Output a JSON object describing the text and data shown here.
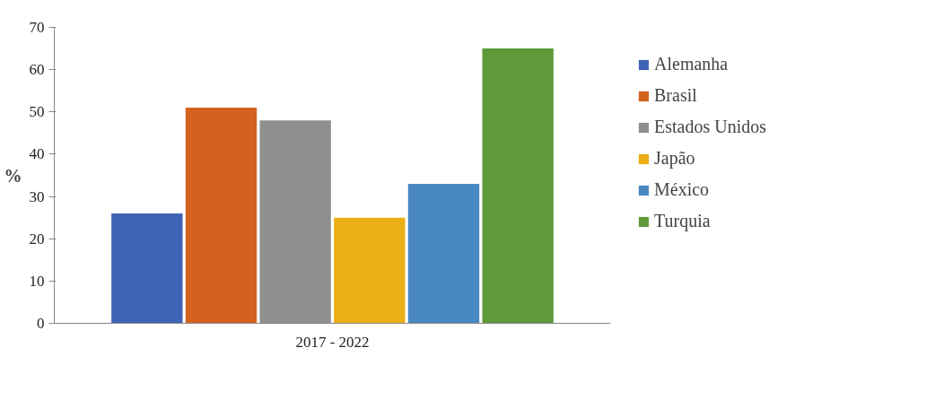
{
  "chart_data": {
    "type": "bar",
    "ylabel": "%",
    "categories": [
      "2017 - 2022"
    ],
    "series": [
      {
        "name": "Alemanha",
        "color": "#3f63b5",
        "values": [
          26
        ]
      },
      {
        "name": "Brasil",
        "color": "#d4621f",
        "values": [
          51
        ]
      },
      {
        "name": "Estados Unidos",
        "color": "#8f8f8f",
        "values": [
          48
        ]
      },
      {
        "name": "Japão",
        "color": "#ebae14",
        "values": [
          25
        ]
      },
      {
        "name": "México",
        "color": "#4a88c2",
        "values": [
          33
        ]
      },
      {
        "name": "Turquia",
        "color": "#5e993a",
        "values": [
          65
        ]
      }
    ],
    "ylim": [
      0,
      70
    ],
    "yticks": [
      0,
      10,
      20,
      30,
      40,
      50,
      60,
      70
    ],
    "grid": false,
    "legend": "right"
  }
}
